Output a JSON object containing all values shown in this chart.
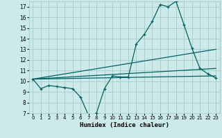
{
  "xlabel": "Humidex (Indice chaleur)",
  "bg_color": "#cceaea",
  "grid_color": "#aacfcf",
  "line_color": "#006060",
  "xlim": [
    -0.5,
    23.5
  ],
  "ylim": [
    7,
    17.5
  ],
  "xticks": [
    0,
    1,
    2,
    3,
    4,
    5,
    6,
    7,
    8,
    9,
    10,
    11,
    12,
    13,
    14,
    15,
    16,
    17,
    18,
    19,
    20,
    21,
    22,
    23
  ],
  "yticks": [
    7,
    8,
    9,
    10,
    11,
    12,
    13,
    14,
    15,
    16,
    17
  ],
  "line1_x": [
    0,
    1,
    2,
    3,
    4,
    5,
    6,
    7,
    8,
    9,
    10,
    11,
    12,
    13,
    14,
    15,
    16,
    17,
    18,
    19,
    20,
    21,
    22,
    23
  ],
  "line1_y": [
    10.2,
    9.3,
    9.6,
    9.5,
    9.4,
    9.3,
    8.5,
    6.8,
    7.0,
    9.3,
    10.5,
    10.4,
    10.4,
    13.5,
    14.4,
    15.6,
    17.2,
    17.0,
    17.5,
    15.3,
    13.1,
    11.2,
    10.7,
    10.3
  ],
  "line2_x": [
    0,
    23
  ],
  "line2_y": [
    10.2,
    10.5
  ],
  "line3_x": [
    0,
    23
  ],
  "line3_y": [
    10.2,
    13.0
  ],
  "line4_x": [
    0,
    23
  ],
  "line4_y": [
    10.2,
    11.2
  ]
}
